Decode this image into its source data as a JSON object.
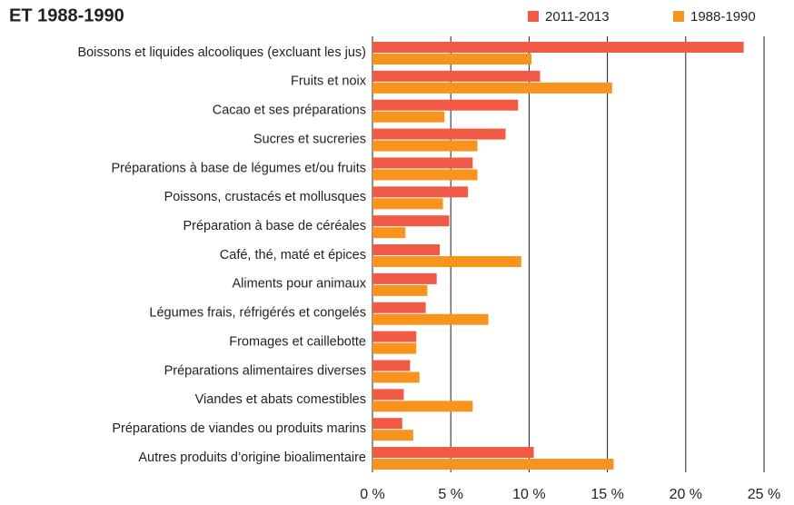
{
  "chart_data": {
    "type": "hbar",
    "title": "ET 1988-1990",
    "categories": [
      "Boissons et liquides alcooliques (excluant les jus)",
      "Fruits et noix",
      "Cacao et ses préparations",
      "Sucres et sucreries",
      "Préparations à base de légumes et/ou fruits",
      "Poissons, crustacés et mollusques",
      "Préparation à base de céréales",
      "Café, thé, maté et épices",
      "Aliments pour animaux",
      "Légumes frais, réfrigérés et congelés",
      "Fromages et caillebotte",
      "Préparations alimentaires diverses",
      "Viandes et abats comestibles",
      "Préparations de viandes ou produits marins",
      "Autres produits d’origine bioalimentaire"
    ],
    "series": [
      {
        "name": "2011-2013",
        "color": "#f15a45",
        "values": [
          23.7,
          10.7,
          9.3,
          8.5,
          6.4,
          6.1,
          4.9,
          4.3,
          4.1,
          3.4,
          2.8,
          2.4,
          2.0,
          1.9,
          10.3
        ]
      },
      {
        "name": "1988-1990",
        "color": "#f7941d",
        "values": [
          10.15,
          15.3,
          4.6,
          6.7,
          6.7,
          4.5,
          2.1,
          9.5,
          3.5,
          7.4,
          2.8,
          3.0,
          6.4,
          2.6,
          15.4
        ]
      }
    ],
    "xlim": [
      0,
      25
    ],
    "xticks": [
      {
        "value": 0,
        "label": "0 %"
      },
      {
        "value": 5,
        "label": "5 %"
      },
      {
        "value": 10,
        "label": "10 %"
      },
      {
        "value": 15,
        "label": "15 %"
      },
      {
        "value": 20,
        "label": "20 %"
      },
      {
        "value": 25,
        "label": "25 %"
      }
    ],
    "grid": true,
    "legend": "top-right"
  }
}
